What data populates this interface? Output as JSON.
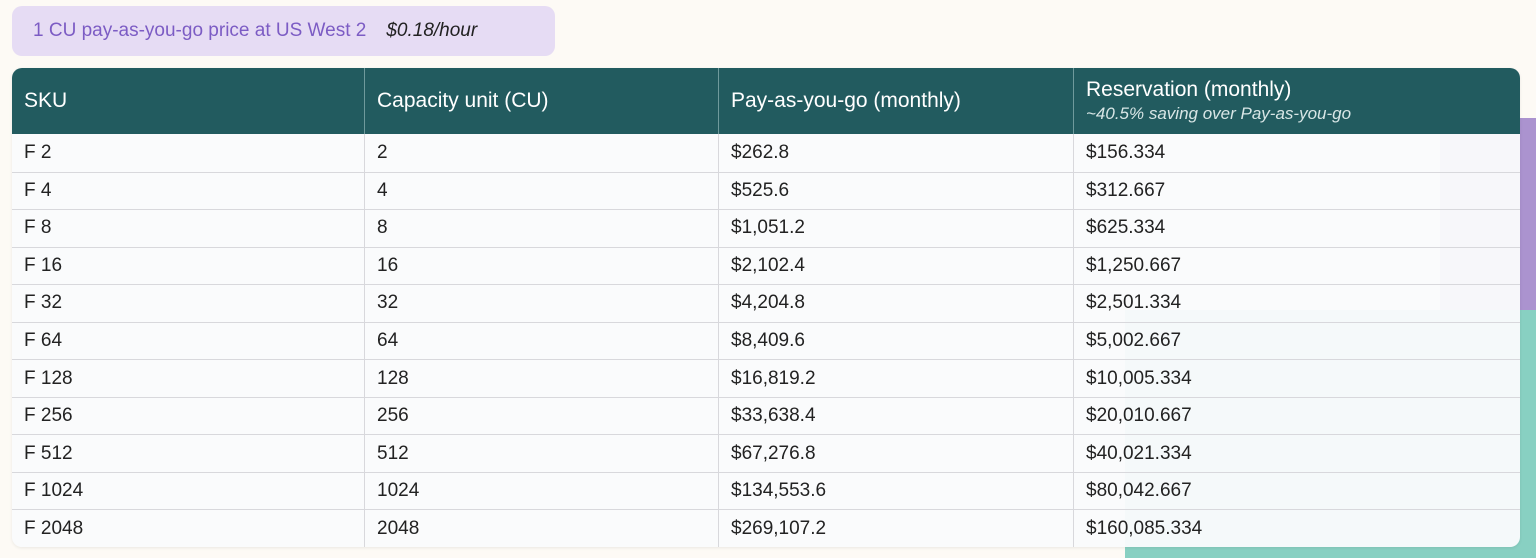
{
  "callout": {
    "label": "1 CU pay-as-you-go price at US West 2",
    "price": "$0.18/hour"
  },
  "colors": {
    "header_bg": "#225b5f",
    "callout_bg": "#e6dcf4",
    "callout_text": "#7c5cc4",
    "deco_purple": "#ab93cf",
    "deco_teal": "#88d0c2"
  },
  "table": {
    "headers": [
      {
        "label": "SKU"
      },
      {
        "label": "Capacity unit (CU)"
      },
      {
        "label": "Pay-as-you-go (monthly)"
      },
      {
        "label": "Reservation (monthly)",
        "sub": "~40.5% saving over Pay-as-you-go"
      }
    ],
    "rows": [
      [
        "F 2",
        "2",
        "$262.8",
        "$156.334"
      ],
      [
        "F 4",
        "4",
        "$525.6",
        "$312.667"
      ],
      [
        "F 8",
        "8",
        "$1,051.2",
        "$625.334"
      ],
      [
        "F 16",
        "16",
        "$2,102.4",
        "$1,250.667"
      ],
      [
        "F 32",
        "32",
        "$4,204.8",
        "$2,501.334"
      ],
      [
        "F 64",
        "64",
        "$8,409.6",
        "$5,002.667"
      ],
      [
        "F 128",
        "128",
        "$16,819.2",
        "$10,005.334"
      ],
      [
        "F 256",
        "256",
        "$33,638.4",
        "$20,010.667"
      ],
      [
        "F 512",
        "512",
        "$67,276.8",
        "$40,021.334"
      ],
      [
        "F 1024",
        "1024",
        "$134,553.6",
        "$80,042.667"
      ],
      [
        "F 2048",
        "2048",
        "$269,107.2",
        "$160,085.334"
      ]
    ]
  }
}
